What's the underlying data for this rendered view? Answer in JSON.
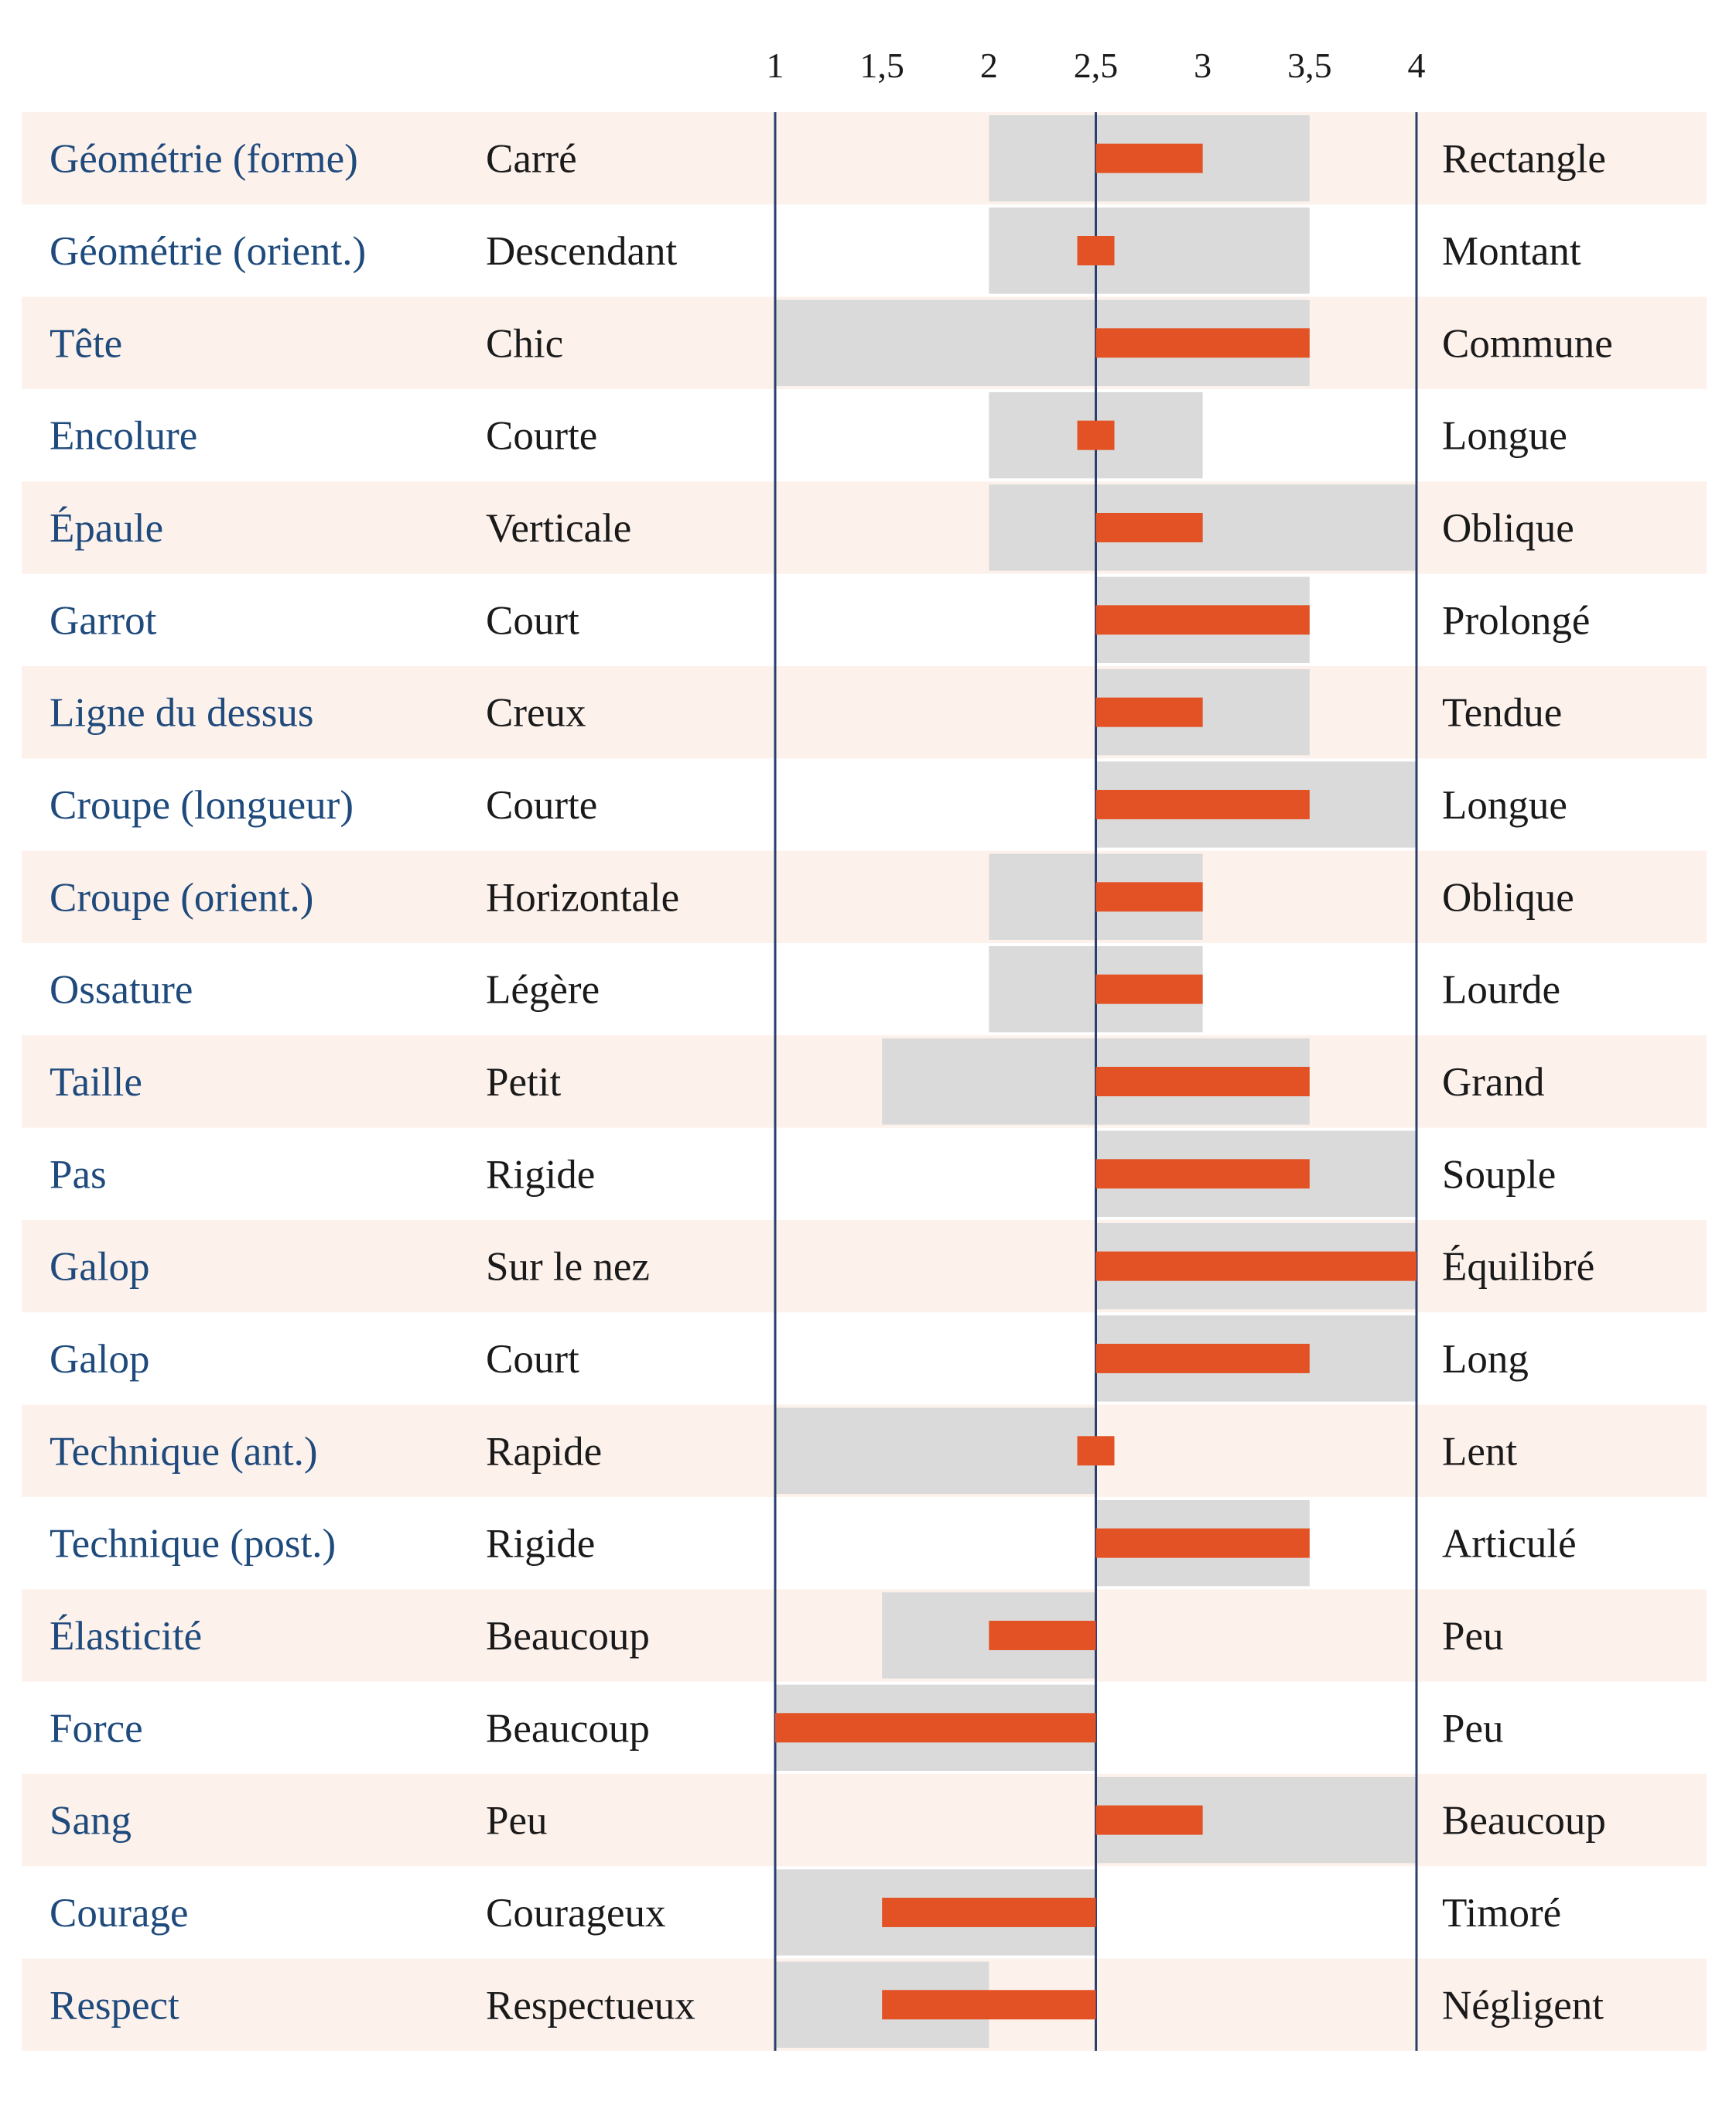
{
  "chart_data": {
    "type": "bar",
    "title": "",
    "xlabel": "",
    "ylabel": "",
    "xlim": [
      1,
      4
    ],
    "baseline": 2.5,
    "ticks": [
      "1",
      "1,5",
      "2",
      "2,5",
      "3",
      "3,5",
      "4"
    ],
    "tick_values": [
      1,
      1.5,
      2,
      2.5,
      3,
      3.5,
      4
    ],
    "grid": false,
    "colors": {
      "trait": "#1f4a7c",
      "text": "#1a1a1a",
      "band": "#fdf1ec",
      "range": "#dadada",
      "bar": "#e35224",
      "axis": "#2a3f6b"
    },
    "rows": [
      {
        "trait": "Géométrie (forme)",
        "low": "Carré",
        "high": "Rectangle",
        "range": [
          2,
          3.5
        ],
        "value": 3
      },
      {
        "trait": "Géométrie (orient.)",
        "low": "Descendant",
        "high": "Montant",
        "range": [
          2,
          3.5
        ],
        "value": 2.5
      },
      {
        "trait": "Tête",
        "low": "Chic",
        "high": "Commune",
        "range": [
          1,
          3.5
        ],
        "value": 3.5
      },
      {
        "trait": "Encolure",
        "low": "Courte",
        "high": "Longue",
        "range": [
          2,
          3
        ],
        "value": 2.5
      },
      {
        "trait": "Épaule",
        "low": "Verticale",
        "high": "Oblique",
        "range": [
          2,
          4
        ],
        "value": 3
      },
      {
        "trait": "Garrot",
        "low": "Court",
        "high": "Prolongé",
        "range": [
          2.5,
          3.5
        ],
        "value": 3.5
      },
      {
        "trait": "Ligne du dessus",
        "low": "Creux",
        "high": "Tendue",
        "range": [
          2.5,
          3.5
        ],
        "value": 3
      },
      {
        "trait": "Croupe (longueur)",
        "low": "Courte",
        "high": "Longue",
        "range": [
          2.5,
          4
        ],
        "value": 3.5
      },
      {
        "trait": "Croupe (orient.)",
        "low": "Horizontale",
        "high": "Oblique",
        "range": [
          2,
          3
        ],
        "value": 3
      },
      {
        "trait": "Ossature",
        "low": "Légère",
        "high": "Lourde",
        "range": [
          2,
          3
        ],
        "value": 3
      },
      {
        "trait": "Taille",
        "low": "Petit",
        "high": "Grand",
        "range": [
          1.5,
          3.5
        ],
        "value": 3.5
      },
      {
        "trait": "Pas",
        "low": "Rigide",
        "high": "Souple",
        "range": [
          2.5,
          4
        ],
        "value": 3.5
      },
      {
        "trait": "Galop",
        "low": "Sur le nez",
        "high": "Équilibré",
        "range": [
          2.5,
          4
        ],
        "value": 4
      },
      {
        "trait": "Galop",
        "low": "Court",
        "high": "Long",
        "range": [
          2.5,
          4
        ],
        "value": 3.5
      },
      {
        "trait": "Technique (ant.)",
        "low": "Rapide",
        "high": "Lent",
        "range": [
          1,
          2.5
        ],
        "value": 2.5
      },
      {
        "trait": "Technique (post.)",
        "low": "Rigide",
        "high": "Articulé",
        "range": [
          2.5,
          3.5
        ],
        "value": 3.5
      },
      {
        "trait": "Élasticité",
        "low": "Beaucoup",
        "high": "Peu",
        "range": [
          1.5,
          2.5
        ],
        "value": 2
      },
      {
        "trait": "Force",
        "low": "Beaucoup",
        "high": "Peu",
        "range": [
          1,
          2.5
        ],
        "value": 1
      },
      {
        "trait": "Sang",
        "low": "Peu",
        "high": "Beaucoup",
        "range": [
          2.5,
          4
        ],
        "value": 3
      },
      {
        "trait": "Courage",
        "low": "Courageux",
        "high": "Timoré",
        "range": [
          1,
          2.5
        ],
        "value": 1.5
      },
      {
        "trait": "Respect",
        "low": "Respectueux",
        "high": "Négligent",
        "range": [
          1,
          2
        ],
        "value": 1.5
      }
    ]
  }
}
